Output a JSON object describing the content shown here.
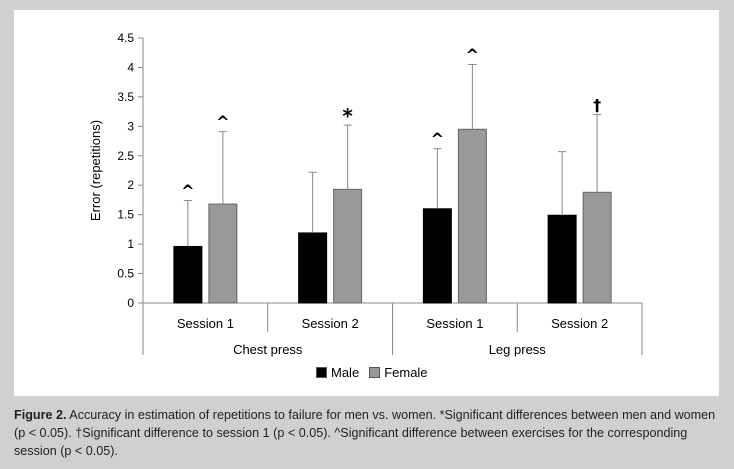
{
  "chart_data": {
    "type": "bar",
    "ylabel": "Error (repetitions)",
    "ylim": [
      0,
      4.5
    ],
    "yticks": [
      "0",
      "0.5",
      "1",
      "1.5",
      "2",
      "2.5",
      "3",
      "3.5",
      "4",
      "4.5"
    ],
    "groups": [
      {
        "label": "Chest press",
        "sessions": [
          "Session 1",
          "Session 2"
        ]
      },
      {
        "label": "Leg press",
        "sessions": [
          "Session 1",
          "Session 2"
        ]
      }
    ],
    "series": [
      {
        "name": "Male",
        "color": "#000000",
        "values": [
          0.96,
          1.19,
          1.6,
          1.49
        ],
        "errors": [
          0.78,
          1.03,
          1.02,
          1.08
        ],
        "markers": [
          "^",
          "",
          "^",
          ""
        ]
      },
      {
        "name": "Female",
        "color": "#999999",
        "values": [
          1.68,
          1.93,
          2.95,
          1.88
        ],
        "errors": [
          1.23,
          1.09,
          1.1,
          1.32
        ],
        "markers": [
          "^",
          "*",
          "^",
          "†"
        ]
      }
    ],
    "grid": false,
    "legend": "bottom"
  },
  "caption": {
    "label": "Figure 2.",
    "text": "Accuracy in estimation of repetitions to failure for men vs. women. *Significant differences between men and women (p < 0.05). †Significant difference to session 1 (p < 0.05). ^Significant difference between exercises for the corresponding session (p < 0.05)."
  }
}
